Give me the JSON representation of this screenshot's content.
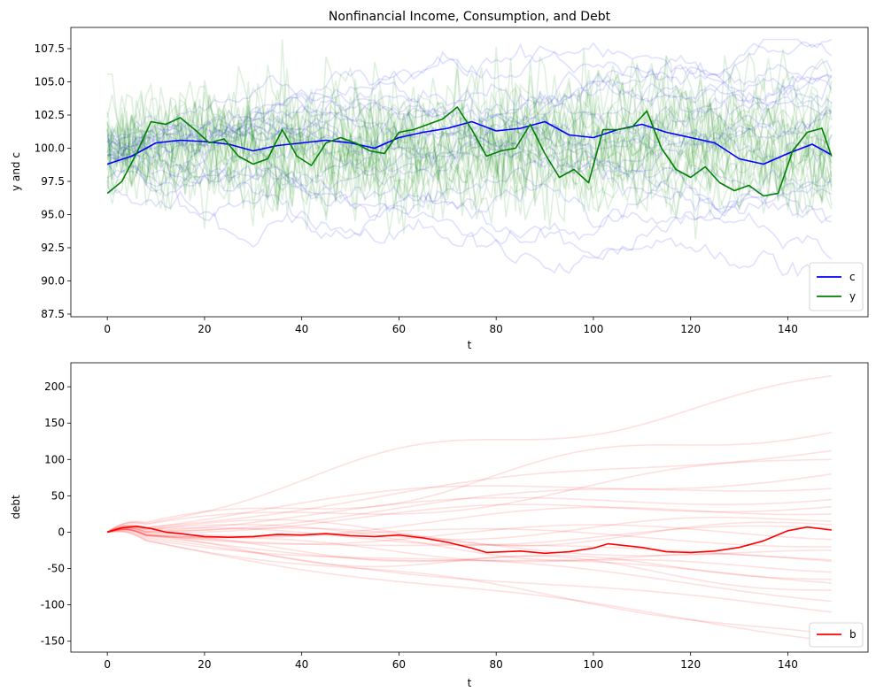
{
  "chart_data": [
    {
      "type": "line",
      "title": "Nonfinancial Income, Consumption, and Debt",
      "xlabel": "t",
      "ylabel": "y and c",
      "xlim": [
        -7.5,
        156.5
      ],
      "ylim": [
        87.3,
        109.1
      ],
      "xticks": [
        0,
        20,
        40,
        60,
        80,
        100,
        120,
        140
      ],
      "yticks": [
        87.5,
        90.0,
        92.5,
        95.0,
        97.5,
        100.0,
        102.5,
        105.0,
        107.5
      ],
      "legend_position": "lower-right",
      "series": [
        {
          "name": "c",
          "color": "#0000ff",
          "x": [
            0,
            5,
            10,
            15,
            20,
            25,
            30,
            35,
            40,
            45,
            50,
            55,
            60,
            65,
            70,
            75,
            80,
            85,
            90,
            95,
            100,
            105,
            110,
            115,
            120,
            125,
            130,
            135,
            140,
            145,
            149
          ],
          "values": [
            98.8,
            99.4,
            100.4,
            100.6,
            100.5,
            100.3,
            99.8,
            100.2,
            100.4,
            100.6,
            100.4,
            100.0,
            100.8,
            101.2,
            101.5,
            102.0,
            101.3,
            101.5,
            102.0,
            101.0,
            100.8,
            101.4,
            101.8,
            101.2,
            100.8,
            100.4,
            99.2,
            98.8,
            99.6,
            100.3,
            99.5
          ]
        },
        {
          "name": "y",
          "color": "#008000",
          "x": [
            0,
            3,
            6,
            9,
            12,
            15,
            18,
            21,
            24,
            27,
            30,
            33,
            36,
            39,
            42,
            45,
            48,
            51,
            54,
            57,
            60,
            63,
            66,
            69,
            72,
            75,
            78,
            81,
            84,
            87,
            90,
            93,
            96,
            99,
            102,
            105,
            108,
            111,
            114,
            117,
            120,
            123,
            126,
            129,
            132,
            135,
            138,
            141,
            144,
            147,
            149
          ],
          "values": [
            96.6,
            97.5,
            99.6,
            102.0,
            101.8,
            102.3,
            101.4,
            100.4,
            100.7,
            99.4,
            98.8,
            99.2,
            101.4,
            99.4,
            98.7,
            100.4,
            100.8,
            100.4,
            99.8,
            99.6,
            101.2,
            101.4,
            101.8,
            102.2,
            103.1,
            101.4,
            99.4,
            99.8,
            100.0,
            101.8,
            99.6,
            97.8,
            98.4,
            97.4,
            101.4,
            101.4,
            101.6,
            102.8,
            100.0,
            98.4,
            97.8,
            98.6,
            97.4,
            96.8,
            97.2,
            96.4,
            96.6,
            99.8,
            101.2,
            101.5,
            99.4
          ]
        }
      ],
      "background_paths": {
        "c_color": "#0000ff",
        "y_color": "#008000",
        "opacity": 0.12,
        "count_per_series": 20
      }
    },
    {
      "type": "line",
      "title": "",
      "xlabel": "t",
      "ylabel": "debt",
      "xlim": [
        -7.5,
        156.5
      ],
      "ylim": [
        -165,
        233
      ],
      "xticks": [
        0,
        20,
        40,
        60,
        80,
        100,
        120,
        140
      ],
      "yticks": [
        -150,
        -100,
        -50,
        0,
        50,
        100,
        150,
        200
      ],
      "legend_position": "lower-right",
      "series": [
        {
          "name": "b",
          "color": "#ff0000",
          "x": [
            0,
            3,
            6,
            9,
            12,
            15,
            20,
            25,
            30,
            35,
            40,
            45,
            50,
            55,
            60,
            65,
            70,
            75,
            78,
            85,
            90,
            95,
            100,
            103,
            110,
            115,
            120,
            125,
            130,
            135,
            140,
            144,
            149
          ],
          "values": [
            0,
            6,
            8,
            5,
            0,
            -2,
            -6,
            -7,
            -6,
            -3,
            -4,
            -2,
            -5,
            -6,
            -4,
            -8,
            -14,
            -22,
            -28,
            -26,
            -29,
            -27,
            -22,
            -16,
            -21,
            -27,
            -28,
            -26,
            -21,
            -12,
            2,
            7,
            3
          ]
        }
      ],
      "background_paths": {
        "color": "#ff0000",
        "opacity": 0.12,
        "count": 25,
        "end_values": [
          215,
          137,
          112,
          100,
          80,
          35,
          25,
          15,
          5,
          -10,
          -25,
          -38,
          -40,
          -55,
          -70,
          -80,
          -95,
          -110,
          -140,
          -150,
          60,
          -65,
          45,
          -20,
          10
        ]
      }
    }
  ]
}
